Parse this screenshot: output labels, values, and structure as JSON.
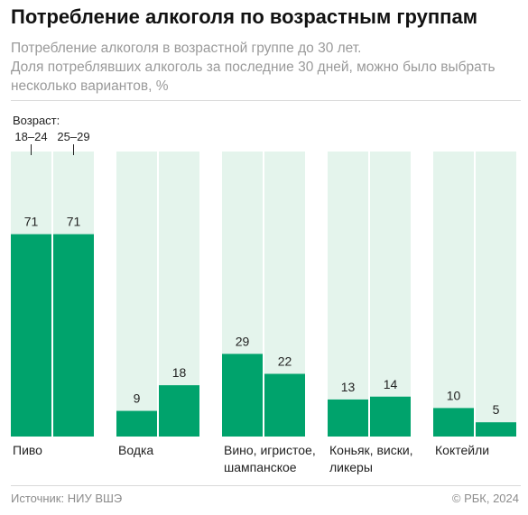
{
  "header": {
    "title": "Потребление алкоголя по возрастным группам",
    "subtitle_lines": [
      "Потребление алкоголя в возрастной группе до 30 лет.",
      "Доля потреблявших алкоголь за последние 30 дней, можно было выбрать",
      "несколько вариантов, %"
    ]
  },
  "legend": {
    "title": "Возраст:",
    "labels": [
      "18–24",
      "25–29"
    ]
  },
  "footer": {
    "source": "Источник: НИУ ВШЭ",
    "copyright": "© РБК, 2024"
  },
  "colors": {
    "bar": "#00a36c",
    "background_band": "#e4f4ec",
    "divider": "#d9d9d9"
  },
  "chart_data": {
    "type": "bar",
    "categories": [
      [
        "Пиво"
      ],
      [
        "Водка"
      ],
      [
        "Вино, игристое,",
        "шампанское"
      ],
      [
        "Коньяк, виски,",
        "ликеры"
      ],
      [
        "Коктейли"
      ]
    ],
    "series": [
      {
        "name": "18–24",
        "values": [
          71,
          9,
          29,
          13,
          10
        ]
      },
      {
        "name": "25–29",
        "values": [
          71,
          18,
          22,
          14,
          5
        ]
      }
    ],
    "ylim": [
      0,
      100
    ],
    "unit": "%",
    "grid": false,
    "legend_position": "top-left"
  }
}
